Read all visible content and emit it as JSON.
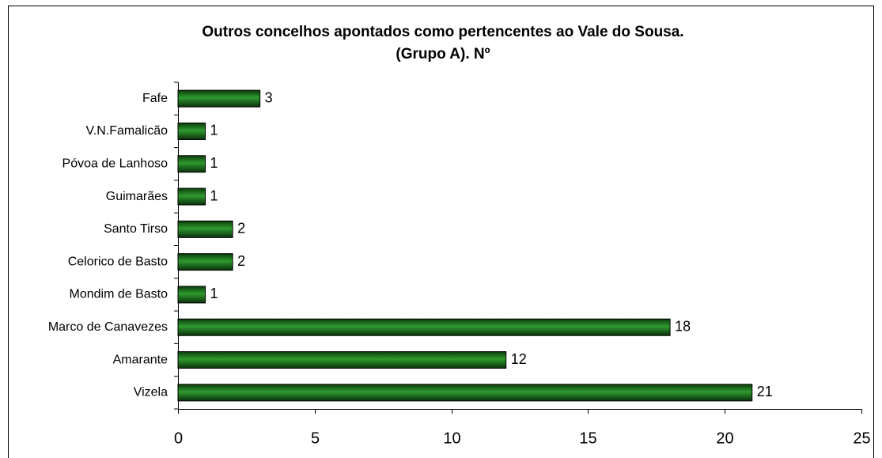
{
  "chart_data": {
    "type": "bar",
    "orientation": "horizontal",
    "title": "Outros concelhos apontados como pertencentes ao Vale do Sousa.",
    "subtitle": "(Grupo A). Nº",
    "categories": [
      "Fafe",
      "V.N.Famalicão",
      "Póvoa de Lanhoso",
      "Guimarães",
      "Santo Tirso",
      "Celorico de Basto",
      "Mondim de Basto",
      "Marco de Canavezes",
      "Amarante",
      "Vizela"
    ],
    "values": [
      3,
      1,
      1,
      1,
      2,
      2,
      1,
      18,
      12,
      21
    ],
    "color": "#1f7a1f",
    "xlim": [
      0,
      25
    ],
    "xticks": [
      0,
      5,
      10,
      15,
      20,
      25
    ],
    "grid": false
  }
}
